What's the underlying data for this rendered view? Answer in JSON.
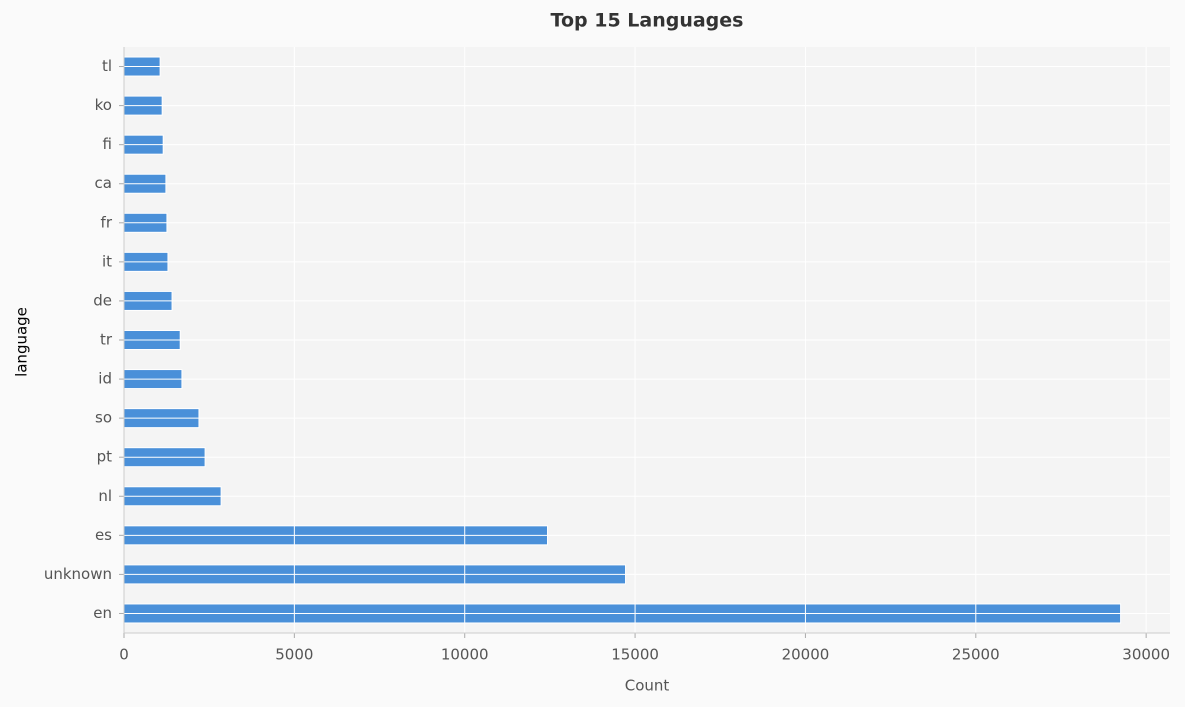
{
  "chart_data": {
    "type": "barh",
    "title": "Top 15 Languages",
    "xlabel": "Count",
    "ylabel": "language",
    "categories": [
      "en",
      "unknown",
      "es",
      "nl",
      "pt",
      "so",
      "id",
      "tr",
      "de",
      "it",
      "fr",
      "ca",
      "fi",
      "ko",
      "tl"
    ],
    "values": [
      29250,
      14720,
      12430,
      2850,
      2380,
      2200,
      1700,
      1650,
      1410,
      1290,
      1260,
      1230,
      1150,
      1120,
      1060
    ],
    "color": "#4a90d9",
    "xlim": [
      0,
      30700
    ],
    "xticks": [
      0,
      5000,
      10000,
      15000,
      20000,
      25000,
      30000
    ],
    "grid": true
  }
}
